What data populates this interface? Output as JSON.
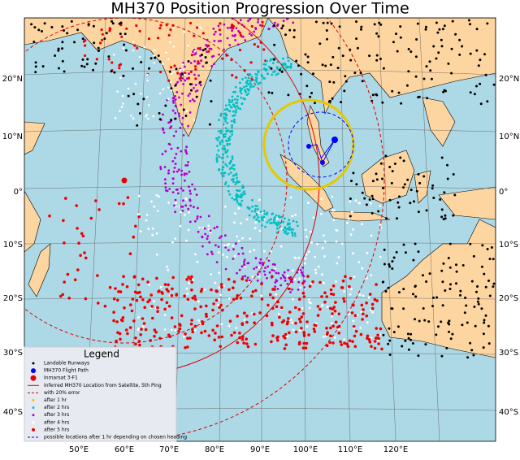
{
  "title": "MH370 Position Progression Over Time",
  "lat_labels": [
    "20°N",
    "10°N",
    "0°",
    "10°S",
    "20°S",
    "30°S",
    "40°S"
  ],
  "lon_labels": [
    "50°E",
    "60°E",
    "70°E",
    "80°E",
    "90°E",
    "100°E",
    "110°E",
    "120°E"
  ],
  "legend": {
    "title": "Legend",
    "items": [
      "Landable Runways",
      "MH370 Flight Path",
      "Inmarsat 3-F1",
      "Inferred MH370 Location from Satellite, 5th Ping",
      "with 20% error",
      "after 1 hr",
      "after 2 hrs",
      "after 3 hrs",
      "after 4 hrs",
      "after 5 hrs",
      "possible locations after 1 hr depending on chosen heading"
    ]
  }
}
